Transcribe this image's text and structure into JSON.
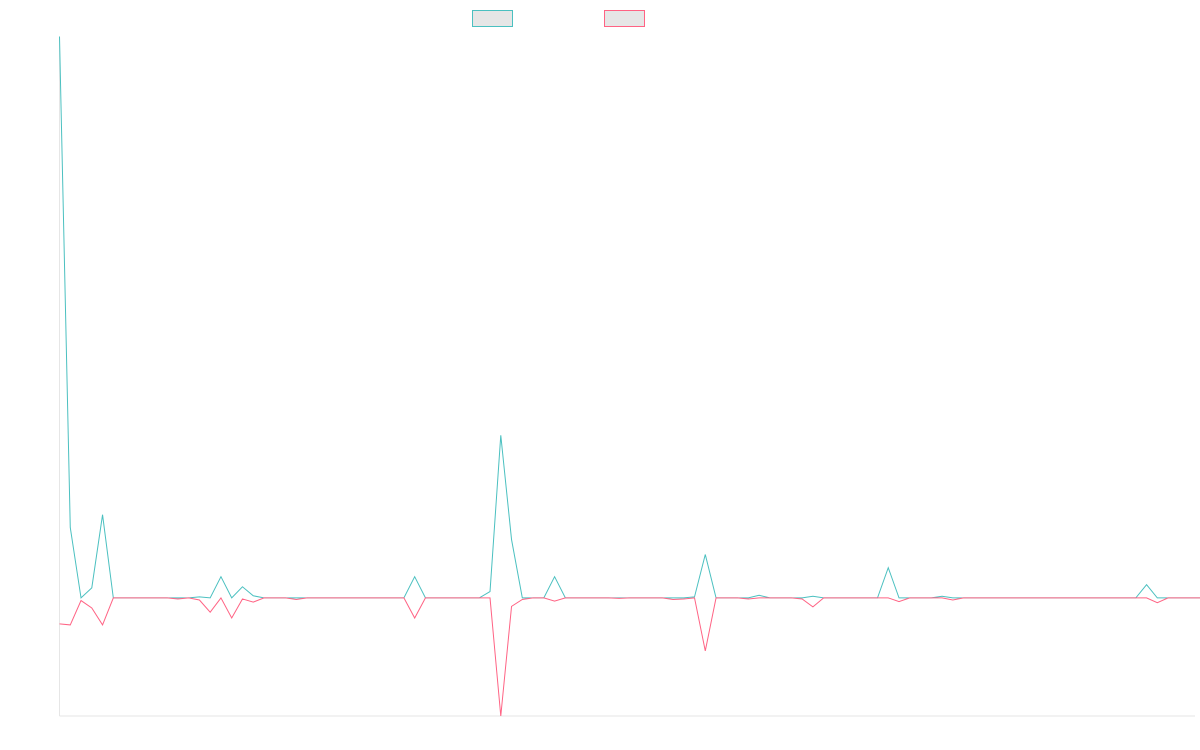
{
  "chart_data": {
    "type": "line",
    "x": [
      0,
      1,
      2,
      3,
      4,
      5,
      6,
      7,
      8,
      9,
      10,
      11,
      12,
      13,
      14,
      15,
      16,
      17,
      18,
      19,
      20,
      21,
      22,
      23,
      24,
      25,
      26,
      27,
      28,
      29,
      30,
      31,
      32,
      33,
      34,
      35,
      36,
      37,
      38,
      39,
      40,
      41,
      42,
      43,
      44,
      45,
      46,
      47,
      48,
      49,
      50,
      51,
      52,
      53,
      54,
      55,
      56,
      57,
      58,
      59,
      60,
      61,
      62,
      63,
      64,
      65,
      66,
      67,
      68,
      69,
      70,
      71,
      72,
      73,
      74,
      75,
      76,
      77,
      78,
      79,
      80,
      81,
      82,
      83,
      84,
      85,
      86,
      87,
      88,
      89,
      90,
      91,
      92,
      93,
      94,
      95,
      96,
      97,
      98,
      99,
      100,
      101,
      102,
      103,
      104,
      105,
      106
    ],
    "series": [
      {
        "name": "",
        "color": "#4bc0c0",
        "values": [
          106.0,
          13.3,
          0.0,
          1.9,
          15.7,
          0.0,
          0.0,
          0.0,
          0.0,
          0.0,
          0.0,
          0.0,
          0.0,
          0.2,
          0.0,
          4.0,
          0.0,
          2.1,
          0.4,
          0.0,
          0.0,
          0.0,
          0.0,
          0.0,
          0.0,
          0.0,
          0.0,
          0.0,
          0.0,
          0.0,
          0.0,
          0.0,
          0.0,
          4.0,
          0.0,
          0.0,
          0.0,
          0.0,
          0.0,
          0.0,
          1.2,
          30.7,
          11.0,
          0.0,
          0.0,
          0.0,
          4.0,
          0.0,
          0.0,
          0.0,
          0.0,
          0.0,
          0.0,
          0.0,
          0.0,
          0.0,
          0.0,
          0.0,
          0.0,
          0.2,
          8.2,
          0.0,
          0.0,
          0.0,
          0.0,
          0.5,
          0.0,
          0.0,
          0.0,
          0.0,
          0.3,
          0.0,
          0.0,
          0.0,
          0.0,
          0.0,
          0.0,
          5.7,
          0.0,
          0.0,
          0.0,
          0.0,
          0.3,
          0.0,
          0.0,
          0.0,
          0.0,
          0.0,
          0.0,
          0.0,
          0.0,
          0.0,
          0.0,
          0.0,
          0.0,
          0.0,
          0.0,
          0.0,
          0.0,
          0.0,
          0.0,
          2.5,
          0.0,
          0.0,
          0.0,
          0.0,
          0.0
        ]
      },
      {
        "name": "",
        "color": "#ff6384",
        "values": [
          -4.9,
          -5.1,
          -0.5,
          -1.9,
          -5.1,
          0.0,
          0.0,
          0.0,
          0.0,
          0.0,
          0.0,
          -0.2,
          0.0,
          -0.4,
          -2.7,
          0.0,
          -3.8,
          -0.2,
          -0.8,
          0.0,
          0.0,
          0.0,
          -0.3,
          0.0,
          0.0,
          0.0,
          0.0,
          0.0,
          0.0,
          0.0,
          0.0,
          0.0,
          0.0,
          -3.8,
          0.0,
          0.0,
          0.0,
          0.0,
          0.0,
          0.0,
          0.0,
          -22.3,
          -1.6,
          -0.3,
          0.0,
          0.0,
          -0.6,
          0.0,
          0.0,
          0.0,
          0.0,
          0.0,
          -0.1,
          0.0,
          0.0,
          0.0,
          0.0,
          -0.3,
          -0.2,
          0.0,
          -10.0,
          0.0,
          0.0,
          0.0,
          -0.2,
          0.0,
          0.0,
          0.0,
          0.0,
          -0.2,
          -1.7,
          0.0,
          0.0,
          0.0,
          0.0,
          0.0,
          0.0,
          0.0,
          -0.7,
          0.0,
          0.0,
          0.0,
          0.0,
          -0.4,
          0.0,
          0.0,
          0.0,
          0.0,
          0.0,
          0.0,
          0.0,
          0.0,
          0.0,
          0.0,
          0.0,
          0.0,
          0.0,
          0.0,
          0.0,
          0.0,
          0.0,
          0.0,
          -0.9,
          0.0,
          0.0,
          0.0,
          0.0
        ]
      }
    ],
    "title": "",
    "xlabel": "",
    "ylabel": "",
    "xlim": [
      0,
      105.5
    ],
    "ylim": [
      -22.3,
      106.0
    ],
    "legend": "top-center",
    "grid": false
  }
}
